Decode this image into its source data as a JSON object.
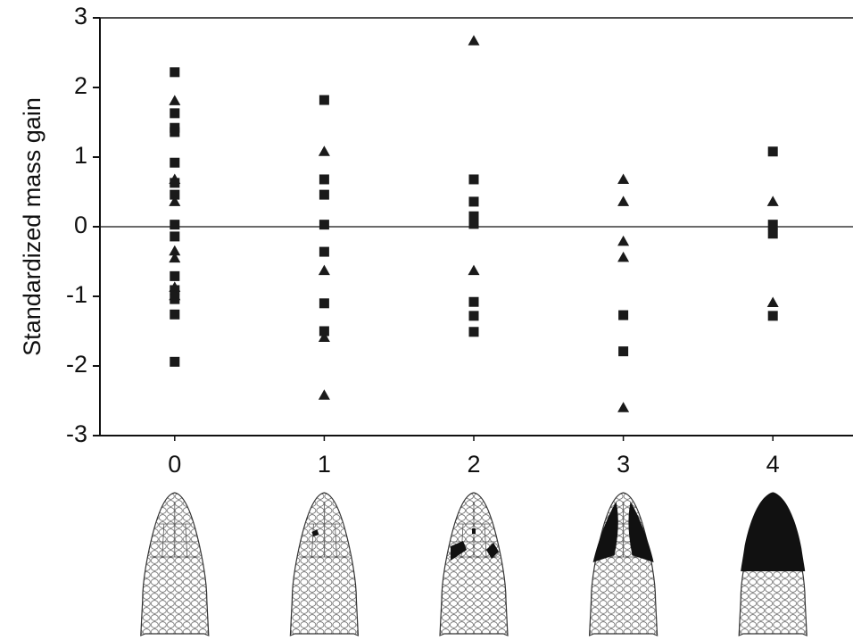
{
  "chart_data": {
    "type": "scatter",
    "y_label": "Standardized mass gain",
    "xlim": [
      -0.5,
      4.5
    ],
    "xticks": [
      0,
      1,
      2,
      3,
      4
    ],
    "ylim": [
      -3,
      3
    ],
    "yticks": [
      -3,
      -2,
      -1,
      0,
      1,
      2,
      3
    ],
    "reference_line": 0,
    "series": [
      {
        "marker": "square",
        "color": "#1a1a1a",
        "x": [
          0,
          0,
          0,
          0,
          0,
          0,
          0,
          0,
          0,
          0,
          0,
          0,
          0,
          0,
          1,
          1,
          1,
          1,
          1,
          1,
          1,
          2,
          2,
          2,
          2,
          2,
          2,
          2,
          3,
          3,
          4,
          4,
          4,
          4
        ],
        "y": [
          2.22,
          1.63,
          1.42,
          1.36,
          0.92,
          0.63,
          0.46,
          0.03,
          -0.14,
          -0.71,
          -0.91,
          -1.04,
          -1.26,
          -1.94,
          1.82,
          0.68,
          0.46,
          0.03,
          -0.36,
          -1.1,
          -1.5,
          0.68,
          0.36,
          0.15,
          0.04,
          -1.08,
          -1.28,
          -1.51,
          -1.27,
          -1.79,
          1.08,
          0.03,
          -0.1,
          -1.28
        ]
      },
      {
        "marker": "triangle",
        "color": "#1a1a1a",
        "x": [
          0,
          0,
          0,
          0,
          0,
          0,
          0,
          1,
          1,
          1,
          1,
          2,
          2,
          3,
          3,
          3,
          3,
          3,
          4,
          4
        ],
        "y": [
          1.81,
          0.68,
          0.36,
          -0.35,
          -0.45,
          -0.87,
          -0.99,
          1.08,
          -0.63,
          -1.59,
          -2.42,
          2.67,
          -0.63,
          0.68,
          0.36,
          -0.21,
          -0.44,
          -2.6,
          0.36,
          -1.09
        ]
      }
    ]
  }
}
